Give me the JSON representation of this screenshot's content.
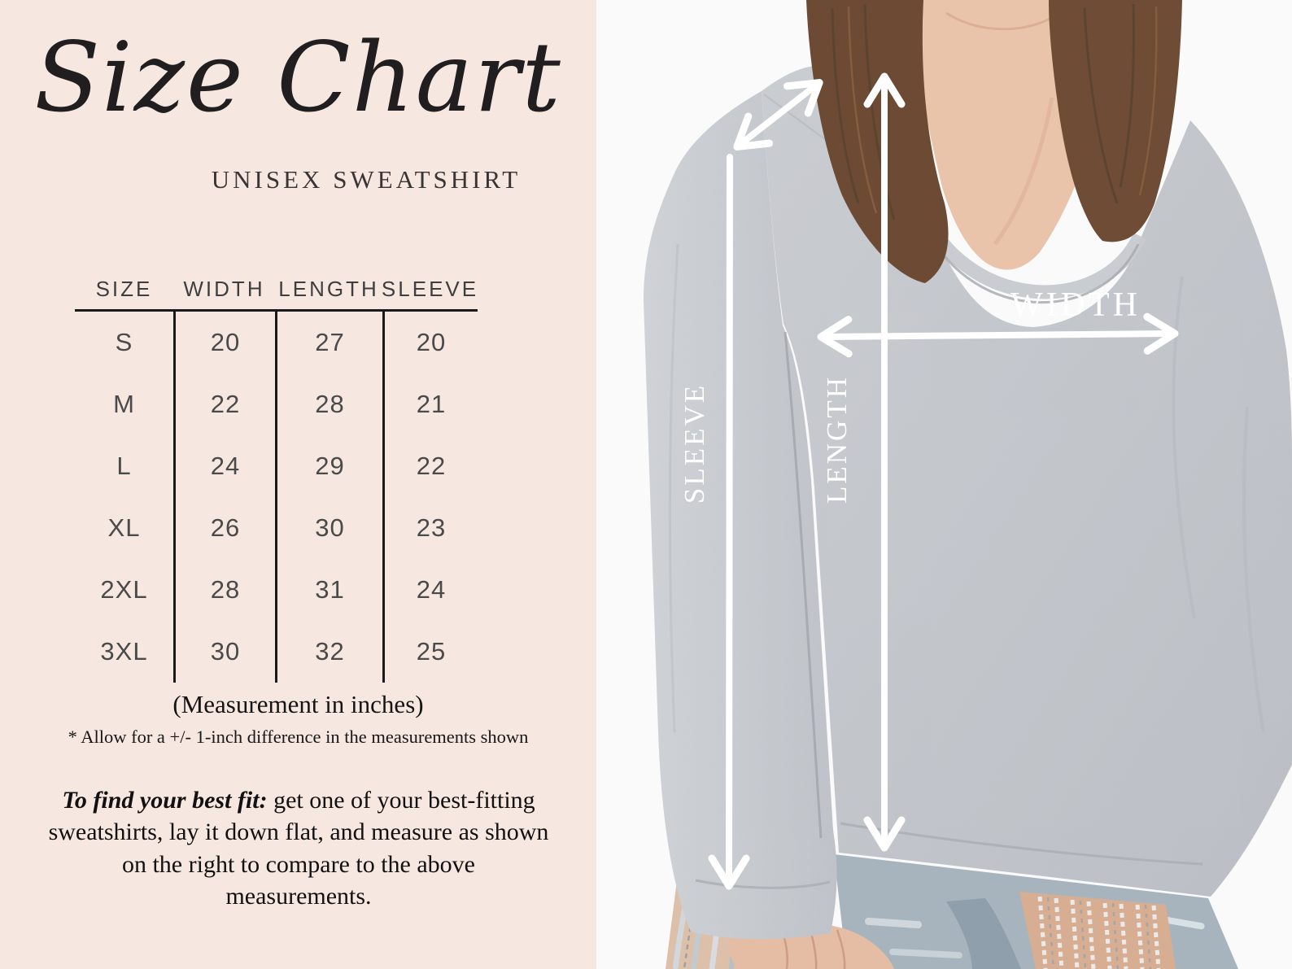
{
  "panel": {
    "title": "Size Chart",
    "subtitle": "UNISEX SWEATSHIRT",
    "unit_note": "(Measurement in inches)",
    "tolerance_note": "* Allow for a +/- 1-inch difference in the measurements shown",
    "fit_tip_lead": "To find your best fit:",
    "fit_tip_body": " get one of your best-fitting sweatshirts, lay it down flat, and measure as shown on the right to compare to the above measurements."
  },
  "photo": {
    "label_width": "WIDTH",
    "label_length": "LENGTH",
    "label_sleeve": "SLEEVE"
  },
  "colors": {
    "panel_bg": "#f6e8e0",
    "ink": "#211e1f",
    "table_ink": "#4a4a4a",
    "photo_bg": "#fbfafb",
    "arrow": "#ffffff",
    "sweatshirt_gray": "#c6c9ce"
  },
  "chart_data": {
    "type": "table",
    "title": "Size Chart",
    "subtitle": "UNISEX SWEATSHIRT",
    "columns": [
      "SIZE",
      "WIDTH",
      "LENGTH",
      "SLEEVE"
    ],
    "rows": [
      [
        "S",
        20,
        27,
        20
      ],
      [
        "M",
        22,
        28,
        21
      ],
      [
        "L",
        24,
        29,
        22
      ],
      [
        "XL",
        26,
        30,
        23
      ],
      [
        "2XL",
        28,
        31,
        24
      ],
      [
        "3XL",
        30,
        32,
        25
      ]
    ],
    "units": "inches",
    "tolerance_note": "* Allow for a +/- 1-inch difference in the measurements shown"
  }
}
